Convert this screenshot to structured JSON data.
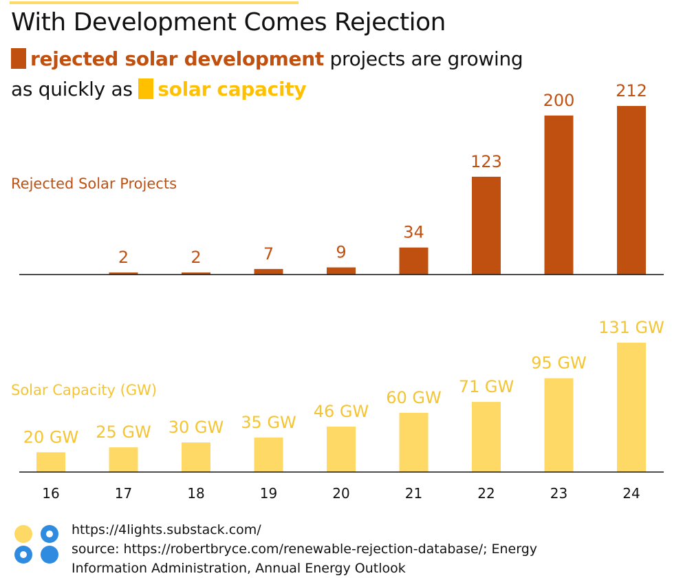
{
  "header": {
    "title": "With Development Comes Rejection",
    "subtitle_part1": "rejected solar development",
    "subtitle_part2": " projects are growing",
    "subtitle_part3": "as quickly as ",
    "subtitle_part4": "solar capacity"
  },
  "colors": {
    "rejected": "#C0500F",
    "capacity": "#FFD966",
    "capacity_swatch": "#FFC000",
    "capacity_text": "#F5C431"
  },
  "chart_data": [
    {
      "type": "bar",
      "title": "Rejected Solar Projects",
      "categories": [
        "16",
        "17",
        "18",
        "19",
        "20",
        "21",
        "22",
        "23",
        "24"
      ],
      "values": [
        0,
        2,
        2,
        7,
        9,
        34,
        123,
        200,
        212
      ],
      "value_labels": [
        "",
        "2",
        "2",
        "7",
        "9",
        "34",
        "123",
        "200",
        "212"
      ],
      "ylim": [
        0,
        212
      ]
    },
    {
      "type": "bar",
      "title": "Solar Capacity (GW)",
      "categories": [
        "16",
        "17",
        "18",
        "19",
        "20",
        "21",
        "22",
        "23",
        "24"
      ],
      "values": [
        20,
        25,
        30,
        35,
        46,
        60,
        71,
        95,
        131
      ],
      "value_labels": [
        "20 GW",
        "25 GW",
        "30 GW",
        "35 GW",
        "46 GW",
        "60 GW",
        "71 GW",
        "95 GW",
        "131 GW"
      ],
      "ylim": [
        0,
        131
      ]
    }
  ],
  "footer": {
    "url": "https://4lights.substack.com/",
    "source_line1": "source: https://robertbryce.com/renewable-rejection-database/; Energy",
    "source_line2": "Information Administration, Annual Energy Outlook"
  }
}
